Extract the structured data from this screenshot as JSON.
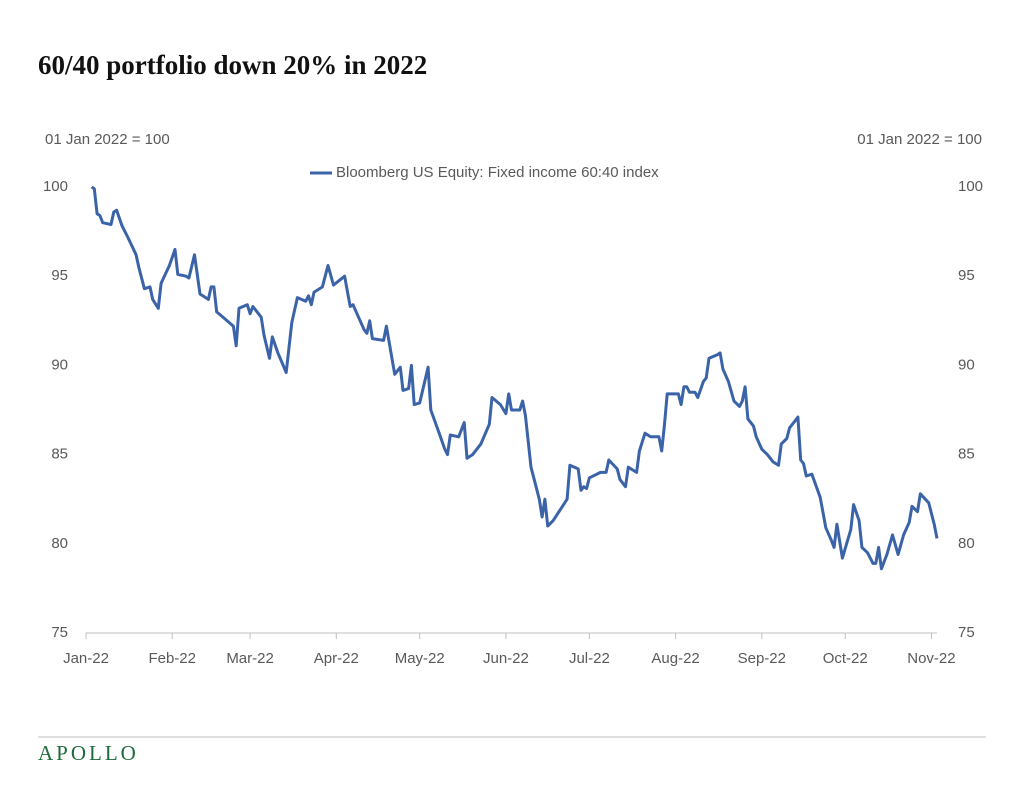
{
  "chart_data": {
    "type": "line",
    "title": "60/40 portfolio down 20% in 2022",
    "ylabel": "01 Jan 2022 = 100",
    "y2label": "01 Jan 2022 = 100",
    "x": [
      2,
      3,
      4,
      5,
      6,
      9,
      10,
      11,
      13,
      15,
      18,
      19,
      21,
      23,
      24,
      26,
      27,
      30,
      32,
      33,
      36,
      37,
      39,
      41,
      44,
      45,
      46,
      47,
      50,
      53,
      54,
      55,
      58,
      59,
      60,
      63,
      64,
      66,
      67,
      69,
      72,
      74,
      76,
      79,
      80,
      81,
      82,
      85,
      87,
      89,
      93,
      95,
      96,
      100,
      101,
      102,
      103,
      107,
      108,
      111,
      113,
      114,
      116,
      117,
      118,
      120,
      123,
      124,
      127,
      129,
      130,
      131,
      134,
      136,
      137,
      139,
      142,
      145,
      146,
      149,
      151,
      152,
      153,
      156,
      157,
      158,
      160,
      163,
      164,
      165,
      166,
      168,
      173,
      174,
      177,
      178,
      179,
      180,
      181,
      185,
      187,
      188,
      191,
      192,
      194,
      195,
      198,
      199,
      201,
      203,
      206,
      207,
      208,
      209,
      213,
      214,
      215,
      216,
      217,
      219,
      220,
      222,
      223,
      224,
      227,
      228,
      229,
      231,
      233,
      235,
      236,
      237,
      238,
      240,
      241,
      243,
      245,
      247,
      249,
      250,
      252,
      253,
      255,
      256,
      257,
      258,
      259,
      261,
      264,
      266,
      268,
      269,
      270,
      272,
      275,
      276,
      278,
      279,
      281,
      283,
      284,
      285,
      286,
      288,
      290,
      292,
      294,
      296,
      297,
      299,
      300,
      303,
      305,
      306
    ],
    "series": [
      {
        "name": "Bloomberg US Equity: Fixed income 60:40 index",
        "color": "#3a63a8",
        "values": [
          100,
          99.9,
          98.5,
          98.4,
          98.0,
          97.9,
          98.6,
          98.7,
          97.8,
          97.2,
          96.2,
          95.5,
          94.3,
          94.4,
          93.7,
          93.2,
          94.6,
          95.6,
          96.5,
          95.1,
          95.0,
          94.9,
          96.2,
          94.0,
          93.7,
          94.4,
          94.4,
          93.0,
          92.6,
          92.2,
          91.1,
          93.2,
          93.4,
          92.9,
          93.3,
          92.7,
          91.7,
          90.4,
          91.6,
          90.7,
          89.6,
          92.4,
          93.8,
          93.6,
          93.9,
          93.4,
          94.1,
          94.4,
          95.6,
          94.5,
          95.0,
          93.3,
          93.4,
          92.0,
          91.8,
          92.5,
          91.5,
          91.4,
          92.2,
          89.5,
          89.9,
          88.6,
          88.7,
          90.0,
          87.8,
          87.9,
          89.9,
          87.5,
          86.2,
          85.3,
          85.0,
          86.1,
          86.0,
          86.8,
          84.8,
          85.0,
          85.6,
          86.7,
          88.2,
          87.8,
          87.3,
          88.4,
          87.5,
          87.5,
          88.0,
          87.2,
          84.3,
          82.5,
          81.5,
          82.5,
          81.0,
          81.3,
          82.5,
          84.4,
          84.2,
          83.0,
          83.2,
          83.1,
          83.7,
          84.0,
          84.0,
          84.7,
          84.2,
          83.6,
          83.2,
          84.3,
          84.0,
          85.2,
          86.2,
          86.0,
          86.0,
          85.2,
          86.7,
          88.4,
          88.4,
          87.8,
          88.8,
          88.8,
          88.5,
          88.5,
          88.2,
          89.1,
          89.3,
          90.4,
          90.6,
          90.7,
          89.8,
          89.1,
          88.0,
          87.7,
          88.0,
          88.8,
          87.0,
          86.6,
          86.0,
          85.3,
          85.0,
          84.6,
          84.4,
          85.6,
          85.9,
          86.5,
          86.9,
          87.1,
          84.7,
          84.5,
          83.8,
          83.9,
          82.6,
          80.9,
          80.2,
          79.8,
          81.1,
          79.2,
          80.8,
          82.2,
          81.3,
          79.8,
          79.5,
          78.9,
          78.9,
          79.8,
          78.6,
          79.4,
          80.5,
          79.4,
          80.5,
          81.2,
          82.1,
          81.8,
          82.8,
          82.3,
          81.1,
          80.3
        ]
      }
    ],
    "xlim": [
      0,
      306
    ],
    "xticks": [
      {
        "value": 0,
        "label": "Jan-22"
      },
      {
        "value": 31,
        "label": "Feb-22"
      },
      {
        "value": 59,
        "label": "Mar-22"
      },
      {
        "value": 90,
        "label": "Apr-22"
      },
      {
        "value": 120,
        "label": "May-22"
      },
      {
        "value": 151,
        "label": "Jun-22"
      },
      {
        "value": 181,
        "label": "Jul-22"
      },
      {
        "value": 212,
        "label": "Aug-22"
      },
      {
        "value": 243,
        "label": "Sep-22"
      },
      {
        "value": 273,
        "label": "Oct-22"
      },
      {
        "value": 304,
        "label": "Nov-22"
      }
    ],
    "ylim": [
      75,
      100
    ],
    "yticks": [
      75,
      80,
      85,
      90,
      95,
      100
    ],
    "y2lim": [
      75,
      100
    ],
    "y2ticks": [
      75,
      80,
      85,
      90,
      95,
      100
    ],
    "grid": false,
    "legend": "top"
  },
  "footer": {
    "brand": "APOLLO"
  }
}
